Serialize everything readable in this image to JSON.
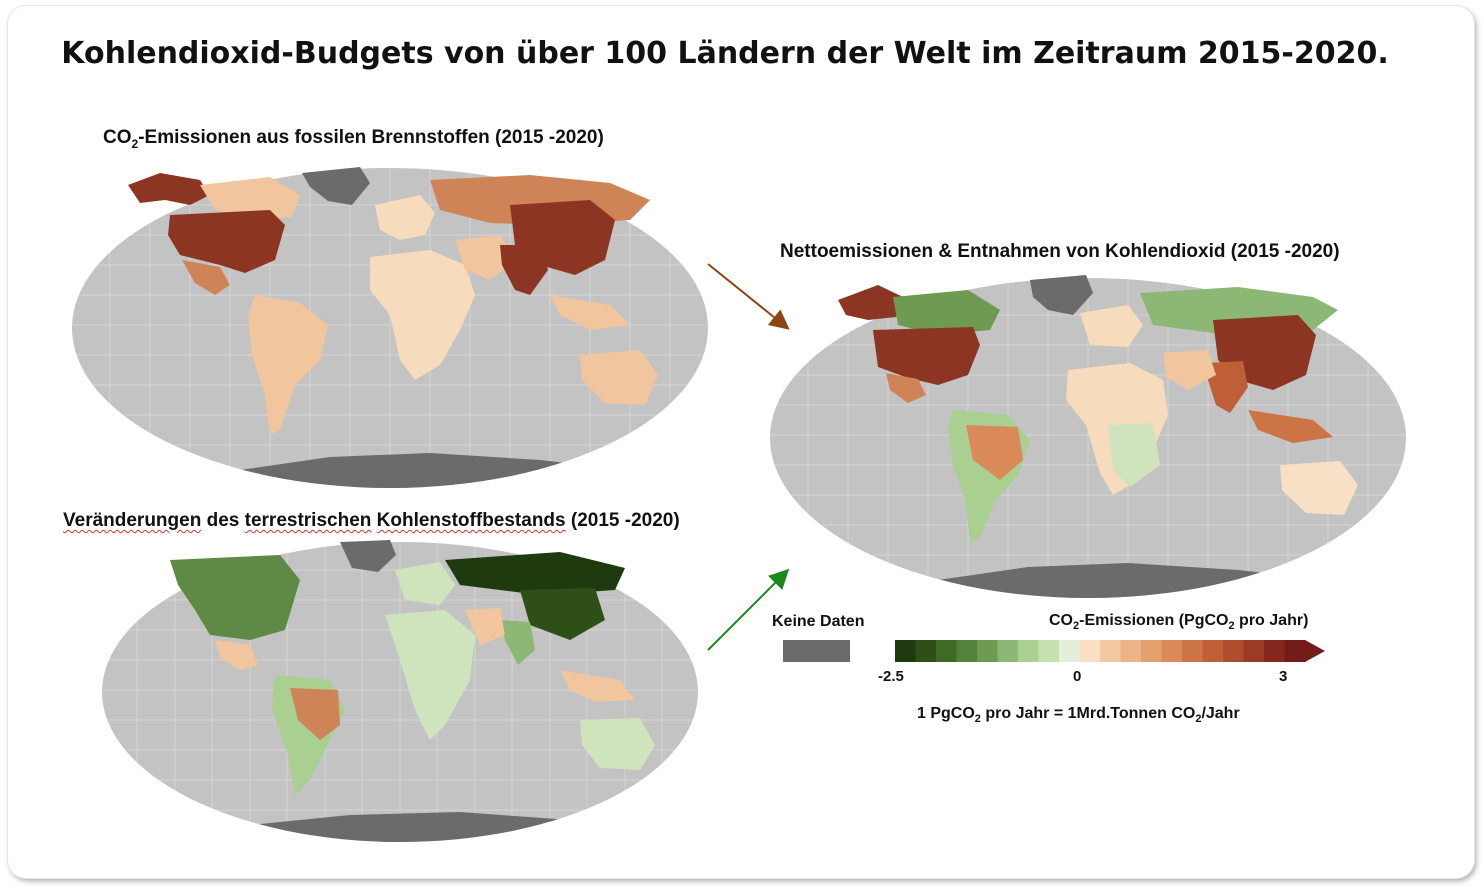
{
  "title": "Kohlendioxid-Budgets von über 100 Ländern der Welt im Zeitraum 2015-2020.",
  "panels": {
    "fossil": {
      "title_pre": "CO",
      "title_sub": "2",
      "title_post": "-Emissionen aus fossilen Brennstoffen (2015 -2020)"
    },
    "land": {
      "title_a": "Veränderungen",
      "title_b": " des ",
      "title_c": "terrestrischen",
      "title_d": " ",
      "title_e": "Kohlenstoffbestands",
      "title_f": " (2015 -2020)"
    },
    "net": {
      "title": "Nettoemissionen & Entnahmen von Kohlendioxid  (2015 -2020)"
    }
  },
  "legend": {
    "no_data": "Keine Daten",
    "colorbar_pre": "CO",
    "colorbar_sub": "2",
    "colorbar_mid": "-Emissionen (PgCO",
    "colorbar_sub2": "2",
    "colorbar_post": " pro Jahr)",
    "ticks": [
      "-2.5",
      "0",
      "3"
    ],
    "unit_a": "1 PgCO",
    "unit_sub": "2",
    "unit_b": " pro Jahr = 1Mrd.Tonnen CO",
    "unit_sub2": "2",
    "unit_c": "/Jahr",
    "colors": [
      "#1f3a0e",
      "#2e4f18",
      "#3f6a24",
      "#55823a",
      "#6f9a52",
      "#8db774",
      "#a9cf91",
      "#c6e1b0",
      "#e3eedb",
      "#f7e0c6",
      "#f2c9a3",
      "#ecb486",
      "#e39f6c",
      "#d98a58",
      "#cd7446",
      "#bf5f38",
      "#ae4c2e",
      "#9b3b26",
      "#87281e",
      "#741c19"
    ]
  },
  "map_colors": {
    "ocean": "#c3c3c3",
    "grid": "#d9d9d9",
    "nodata": "#6b6b6b",
    "dark_red": "#8c3522",
    "mid_orange": "#cf8458",
    "light_peach": "#f1c59d",
    "cream": "#f6dcbd",
    "dark_green": "#1f3a0e",
    "mid_green": "#5f8a45",
    "light_green": "#a9cf91",
    "pale_green": "#cfe4bd"
  },
  "arrow_colors": {
    "top": "#8b4513",
    "bottom": "#1a8a1a"
  }
}
